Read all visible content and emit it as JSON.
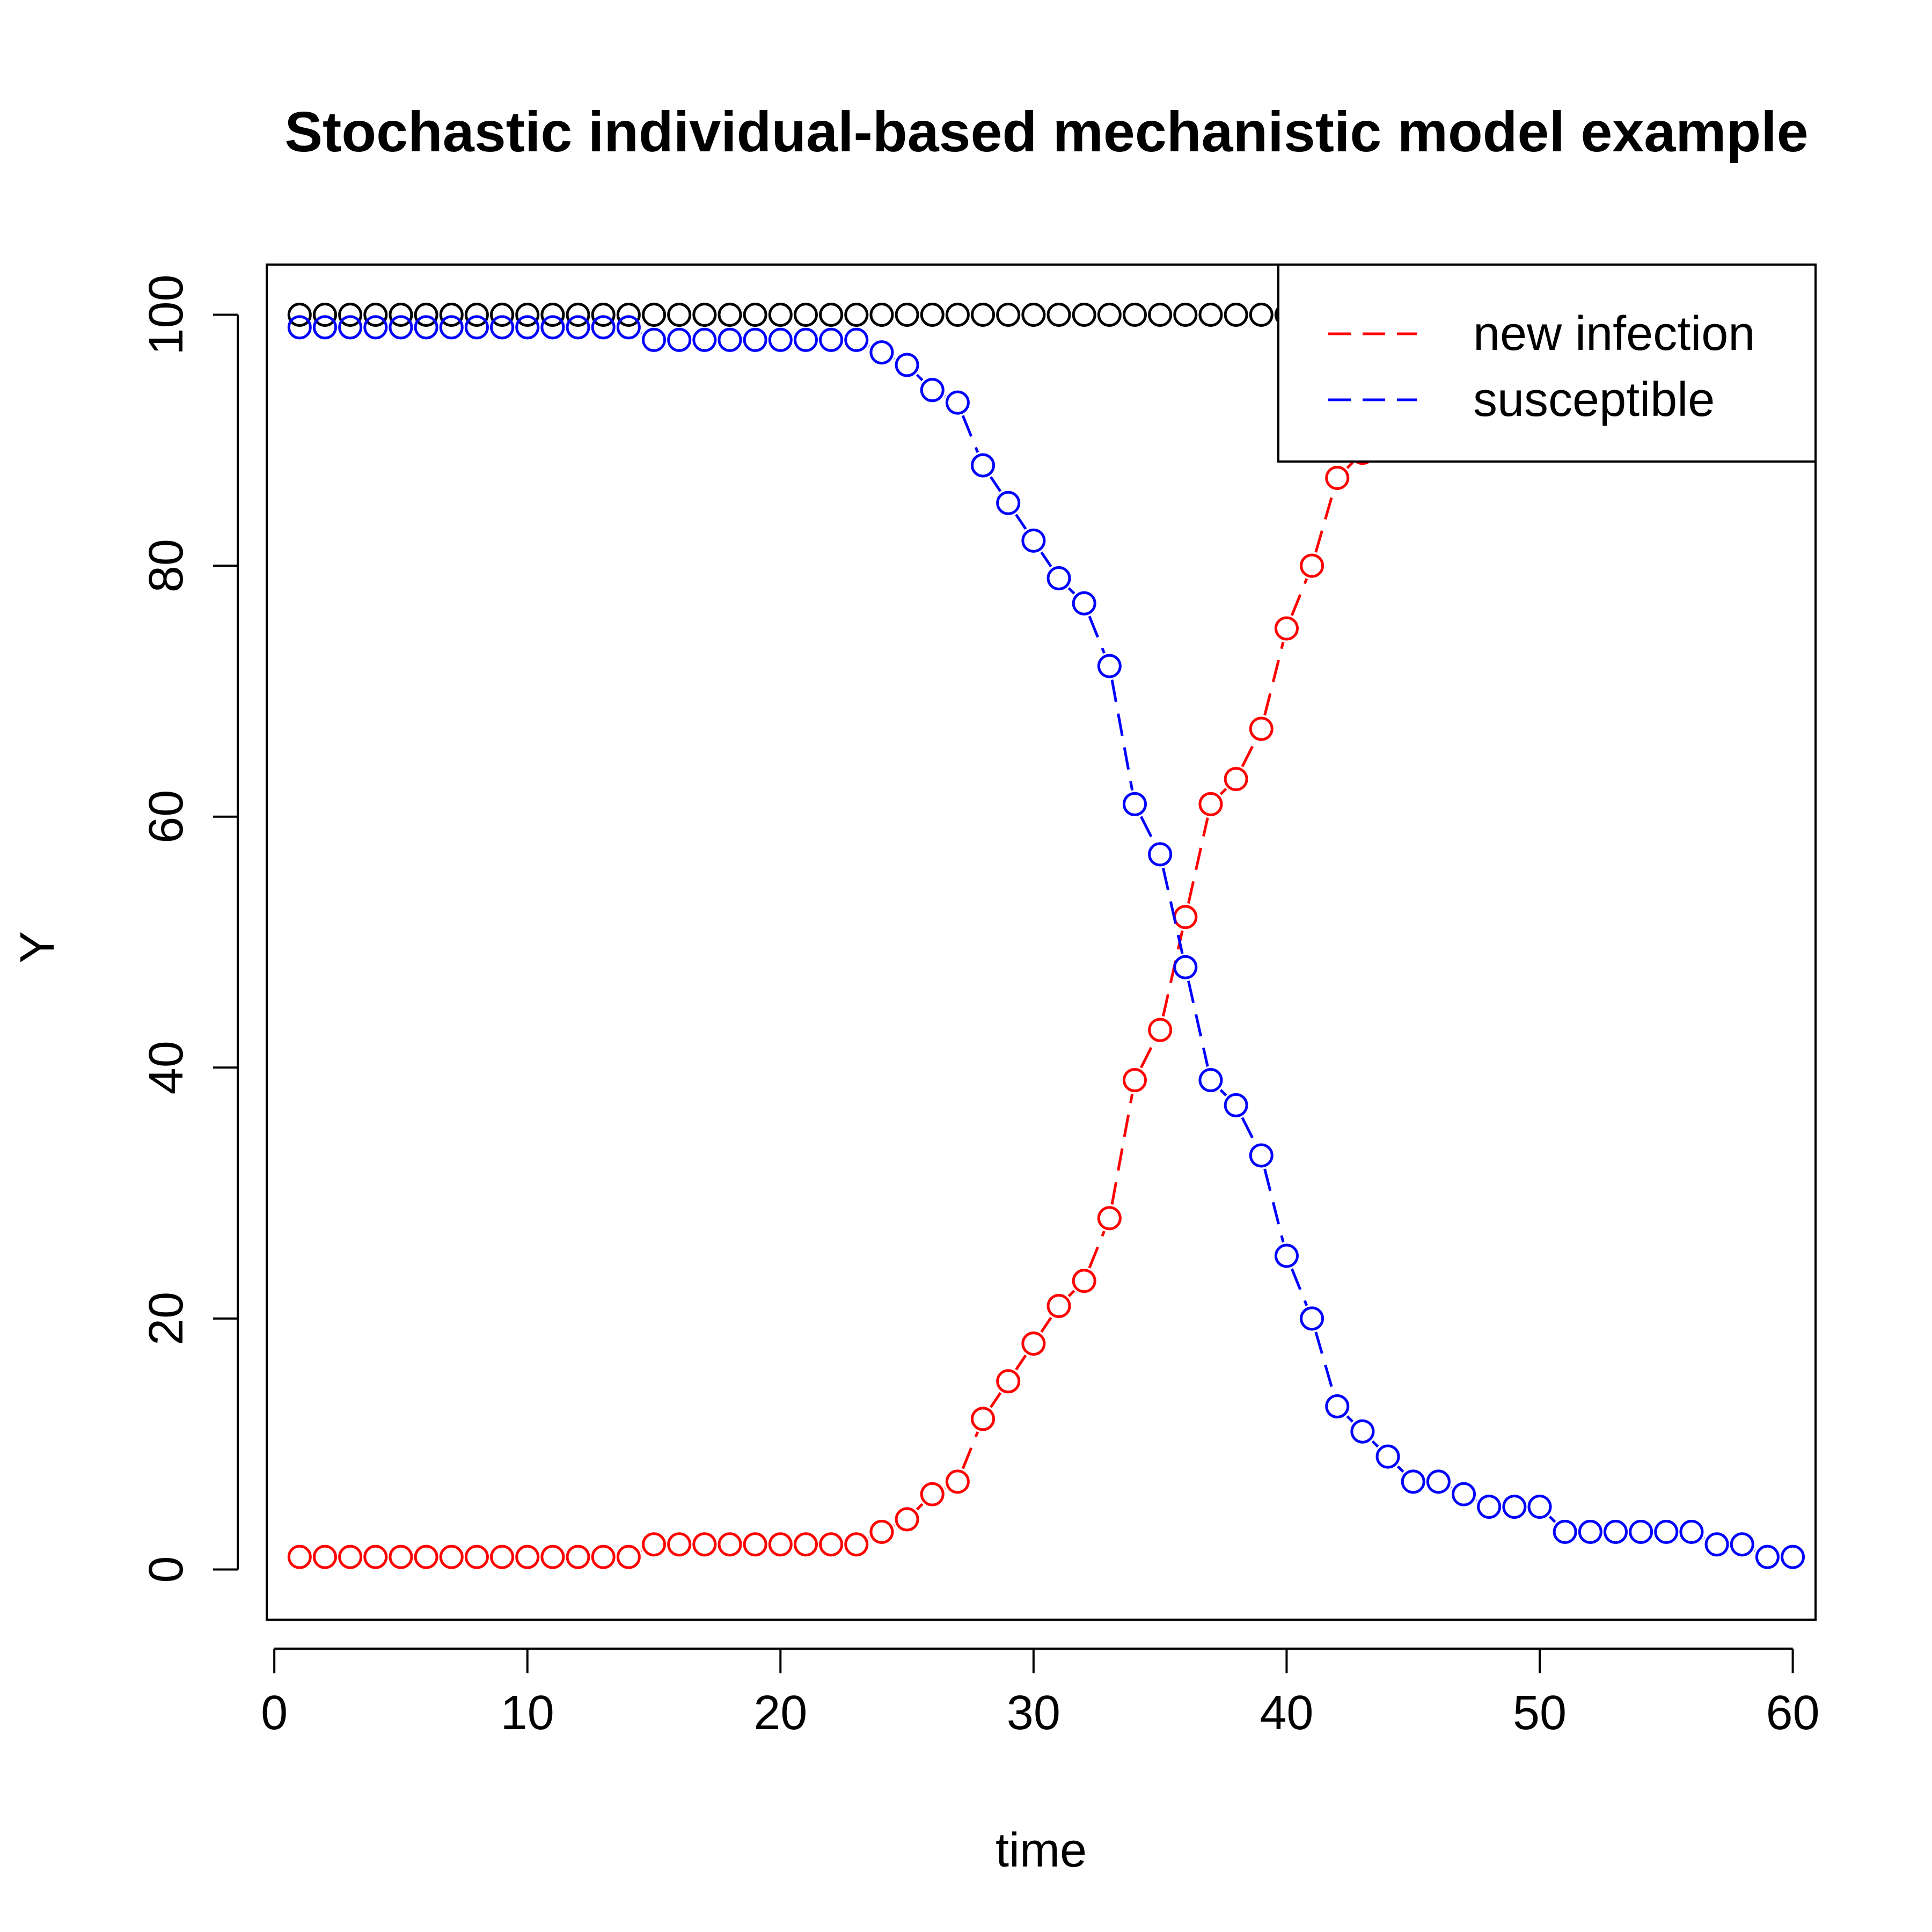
{
  "chart_data": {
    "type": "scatter",
    "title": "Stochastic individual-based mechanistic model example",
    "xlabel": "time",
    "ylabel": "Y",
    "xlim": [
      -0.3,
      60.9
    ],
    "ylim": [
      -4,
      104
    ],
    "xticks": [
      0,
      10,
      20,
      30,
      40,
      50,
      60
    ],
    "yticks": [
      0,
      20,
      40,
      60,
      80,
      100
    ],
    "grid": false,
    "legend": {
      "position": "top-right",
      "entries": [
        "new infection",
        "susceptible"
      ]
    },
    "x": [
      1,
      2,
      3,
      4,
      5,
      6,
      7,
      8,
      9,
      10,
      11,
      12,
      13,
      14,
      15,
      16,
      17,
      18,
      19,
      20,
      21,
      22,
      23,
      24,
      25,
      26,
      27,
      28,
      29,
      30,
      31,
      32,
      33,
      34,
      35,
      36,
      37,
      38,
      39,
      40,
      41,
      42,
      43,
      44,
      45,
      46,
      47,
      48,
      49,
      50,
      51,
      52,
      53,
      54,
      55,
      56,
      57,
      58,
      59,
      60
    ],
    "series": [
      {
        "color": "#000000",
        "line": false,
        "values": [
          100,
          100,
          100,
          100,
          100,
          100,
          100,
          100,
          100,
          100,
          100,
          100,
          100,
          100,
          100,
          100,
          100,
          100,
          100,
          100,
          100,
          100,
          100,
          100,
          100,
          100,
          100,
          100,
          100,
          100,
          100,
          100,
          100,
          100,
          100,
          100,
          100,
          100,
          100,
          100,
          100,
          100,
          100,
          100,
          100,
          100,
          100,
          100,
          100,
          100,
          100,
          100,
          100,
          100,
          100,
          100,
          100,
          100,
          100,
          100
        ]
      },
      {
        "name": "new infection",
        "color": "#ff0000",
        "line": true,
        "values": [
          1,
          1,
          1,
          1,
          1,
          1,
          1,
          1,
          1,
          1,
          1,
          1,
          1,
          1,
          2,
          2,
          2,
          2,
          2,
          2,
          2,
          2,
          2,
          3,
          4,
          6,
          7,
          12,
          15,
          18,
          21,
          23,
          28,
          39,
          43,
          52,
          61,
          63,
          67,
          75,
          80,
          87,
          89,
          91,
          93,
          94,
          94,
          95,
          95,
          95,
          97,
          97,
          97,
          97,
          97,
          97,
          98,
          98,
          99,
          99
        ]
      },
      {
        "name": "susceptible",
        "color": "#0000ff",
        "line": true,
        "values": [
          99,
          99,
          99,
          99,
          99,
          99,
          99,
          99,
          99,
          99,
          99,
          99,
          99,
          99,
          98,
          98,
          98,
          98,
          98,
          98,
          98,
          98,
          98,
          97,
          96,
          94,
          93,
          88,
          85,
          82,
          79,
          77,
          72,
          61,
          57,
          48,
          39,
          37,
          33,
          25,
          20,
          13,
          11,
          9,
          7,
          7,
          6,
          5,
          5,
          5,
          3,
          3,
          3,
          3,
          3,
          3,
          2,
          2,
          1,
          1
        ]
      }
    ]
  }
}
